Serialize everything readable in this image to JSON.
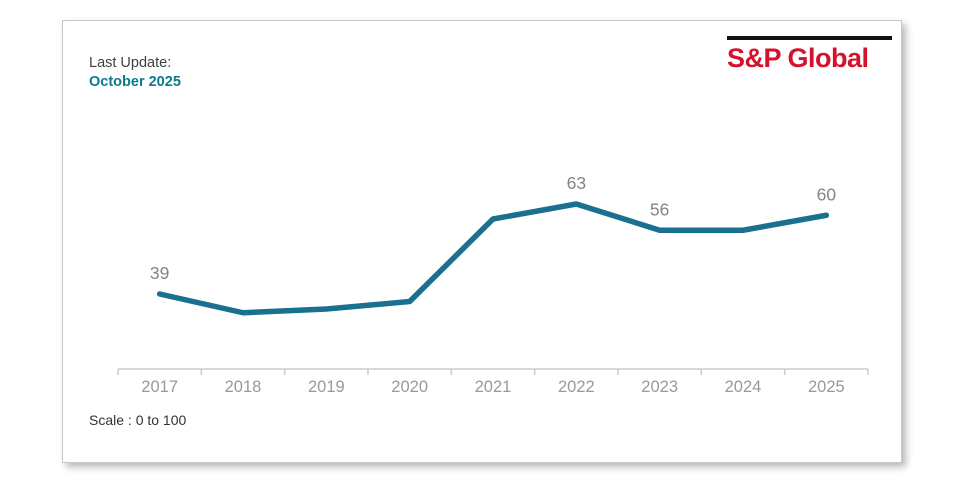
{
  "header": {
    "last_update_label": "Last Update:",
    "last_update_value": "October 2025"
  },
  "logo": {
    "text": "S&P Global"
  },
  "footer": {
    "scale_note": "Scale : 0 to 100"
  },
  "colors": {
    "line_teal": "#19708F",
    "accent_teal": "#0A7A8C",
    "logo_red": "#D6112E",
    "logo_bar_black": "#111111",
    "data_label_gray": "#848484",
    "axis_label_gray": "#999999",
    "axis_line_gray": "#CCCCCC"
  },
  "chart_data": {
    "type": "line",
    "title": "",
    "xlabel": "",
    "ylabel": "",
    "categories": [
      "2017",
      "2018",
      "2019",
      "2020",
      "2021",
      "2022",
      "2023",
      "2024",
      "2025"
    ],
    "values": [
      39,
      34,
      35,
      37,
      59,
      63,
      56,
      56,
      60
    ],
    "data_labels_shown": [
      39,
      null,
      null,
      null,
      null,
      63,
      56,
      null,
      60
    ],
    "ylim": [
      0,
      100
    ],
    "grid": false,
    "legend": "none",
    "line_color": "#19708F"
  }
}
